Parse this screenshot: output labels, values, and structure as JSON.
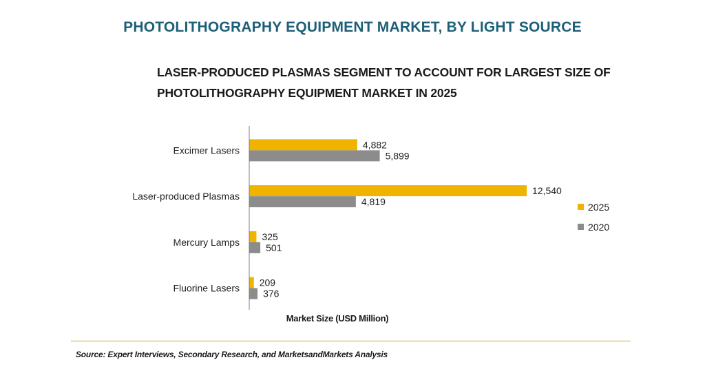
{
  "title": "PHOTOLITHOGRAPHY EQUIPMENT MARKET, BY LIGHT SOURCE",
  "subtitle_line1": "LASER-PRODUCED PLASMAS SEGMENT TO ACCOUNT FOR LARGEST SIZE OF",
  "subtitle_line2": "PHOTOLITHOGRAPHY EQUIPMENT MARKET IN 2025",
  "source": "Source: Expert Interviews, Secondary Research, and MarketsandMarkets Analysis",
  "colors": {
    "series_2025": "#f0b400",
    "series_2020": "#8c8c8c",
    "title": "#1d5f78",
    "divider": "#c9a227"
  },
  "chart_data": {
    "type": "bar",
    "orientation": "horizontal",
    "categories": [
      "Excimer Lasers",
      "Laser-produced Plasmas",
      "Mercury Lamps",
      "Fluorine Lasers"
    ],
    "series": [
      {
        "name": "2025",
        "values": [
          4882,
          12540,
          325,
          209
        ],
        "labels": [
          "4,882",
          "12,540",
          "325",
          "209"
        ]
      },
      {
        "name": "2020",
        "values": [
          5899,
          4819,
          501,
          376
        ],
        "labels": [
          "5,899",
          "4,819",
          "501",
          "376"
        ]
      }
    ],
    "xlabel": "Market Size (USD Million)",
    "ylabel": "",
    "xlim": [
      0,
      13500
    ],
    "grid": false,
    "legend_position": "right"
  }
}
